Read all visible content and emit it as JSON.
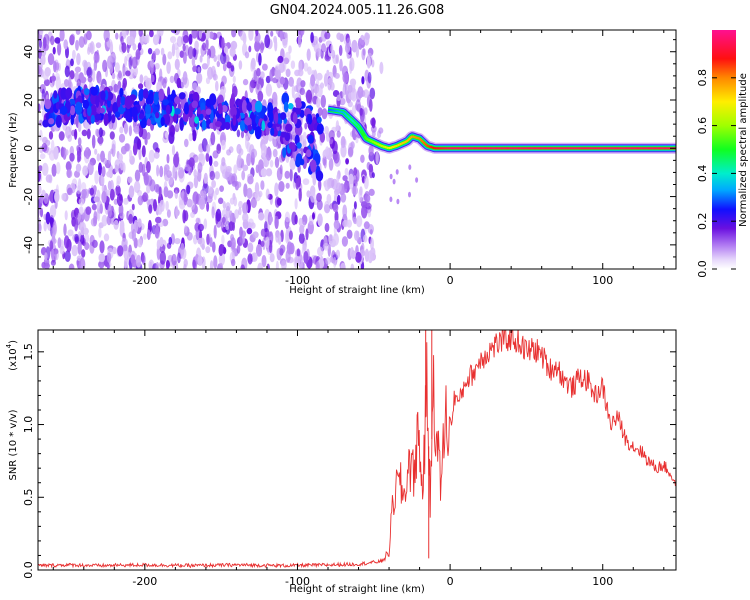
{
  "page": {
    "title": "GN04.2024.005.11.26.G08"
  },
  "chart_data": [
    {
      "type": "heatmap",
      "title": "GN04.2024.005.11.26.G08",
      "xlabel": "Height of straight line (km)",
      "ylabel": "Frequency (Hz)",
      "xlim": [
        -270,
        148
      ],
      "ylim": [
        -50,
        49
      ],
      "x_ticks": [
        -200,
        -100,
        0,
        100
      ],
      "y_ticks": [
        -40,
        -20,
        0,
        20,
        40
      ],
      "x_tick_labels": [
        "-200",
        "-100",
        "0",
        "100"
      ],
      "y_tick_labels": [
        "-40",
        "-20",
        "0",
        "20",
        "40"
      ],
      "colorbar": {
        "label": "Normalized spectral amplitude",
        "range": [
          0,
          1
        ],
        "ticks": [
          0.0,
          0.2,
          0.4,
          0.6,
          0.8
        ],
        "tick_labels": [
          "0.0",
          "0.2",
          "0.4",
          "0.6",
          "0.8"
        ],
        "colormap": "rainbow (white-purple-blue-cyan-green-yellow-red-magenta)"
      },
      "ridge": {
        "description": "dominant frequency track",
        "noisy_segment": {
          "x": [
            -265,
            -240,
            -210,
            -180,
            -150,
            -130,
            -110,
            -95,
            -85
          ],
          "y": [
            16,
            18,
            17,
            16,
            15,
            13,
            10,
            5,
            0
          ]
        },
        "signal_segment": {
          "x": [
            -80,
            -70,
            -60,
            -55,
            -45,
            -40,
            -35,
            -28,
            -25,
            -20,
            -15,
            -10,
            0,
            148
          ],
          "y": [
            16,
            15,
            9,
            4,
            1,
            0,
            1,
            3,
            5,
            4,
            1,
            0,
            0,
            0
          ],
          "amplitude": [
            0.3,
            0.35,
            0.45,
            0.55,
            0.65,
            0.7,
            0.72,
            0.75,
            0.78,
            0.8,
            0.85,
            0.9,
            0.95,
            0.95
          ]
        }
      },
      "colors": {
        "background_noise": "#c9a6f5",
        "noise_dark": "#6a10e0",
        "line_core": "#ff2020"
      }
    },
    {
      "type": "line",
      "xlabel": "Height of straight line (km)",
      "ylabel": "SNR (10 * v/v)",
      "y_multiplier_label": "(x10",
      "y_multiplier_exp": "4",
      "y_multiplier_close": ")",
      "xlim": [
        -270,
        148
      ],
      "ylim": [
        0,
        1.65
      ],
      "x_ticks": [
        -200,
        -100,
        0,
        100
      ],
      "y_ticks": [
        0.0,
        0.5,
        1.0,
        1.5
      ],
      "x_tick_labels": [
        "-200",
        "-100",
        "0",
        "100"
      ],
      "y_tick_labels": [
        "0.0",
        "0.5",
        "1.0",
        "1.5"
      ],
      "series": [
        {
          "color": "#e83030",
          "x": [
            -270,
            -250,
            -230,
            -200,
            -170,
            -140,
            -110,
            -80,
            -60,
            -45,
            -40,
            -38,
            -36,
            -33,
            -30,
            -27,
            -24,
            -21,
            -18,
            -15,
            -13,
            -11,
            -9,
            -6,
            -3,
            0,
            3,
            6,
            10,
            15,
            20,
            25,
            30,
            35,
            40,
            45,
            50,
            55,
            60,
            65,
            70,
            75,
            80,
            85,
            90,
            95,
            100,
            105,
            110,
            115,
            120,
            125,
            130,
            135,
            140,
            145,
            148
          ],
          "y": [
            0.03,
            0.035,
            0.03,
            0.035,
            0.03,
            0.035,
            0.03,
            0.035,
            0.04,
            0.06,
            0.12,
            0.4,
            0.55,
            0.6,
            0.5,
            0.75,
            0.65,
            0.95,
            0.55,
            1.3,
            0.4,
            1.4,
            0.9,
            0.6,
            1.05,
            0.95,
            1.2,
            1.15,
            1.3,
            1.35,
            1.45,
            1.5,
            1.55,
            1.58,
            1.6,
            1.57,
            1.5,
            1.52,
            1.48,
            1.38,
            1.4,
            1.3,
            1.25,
            1.33,
            1.3,
            1.2,
            1.26,
            1.0,
            1.05,
            0.9,
            0.85,
            0.82,
            0.75,
            0.7,
            0.72,
            0.65,
            0.58
          ]
        }
      ],
      "spikes": [
        {
          "x": -16,
          "y": 1.65
        },
        {
          "x": -12,
          "y": 1.65
        },
        {
          "x": -14,
          "y": 0.08
        }
      ]
    }
  ]
}
